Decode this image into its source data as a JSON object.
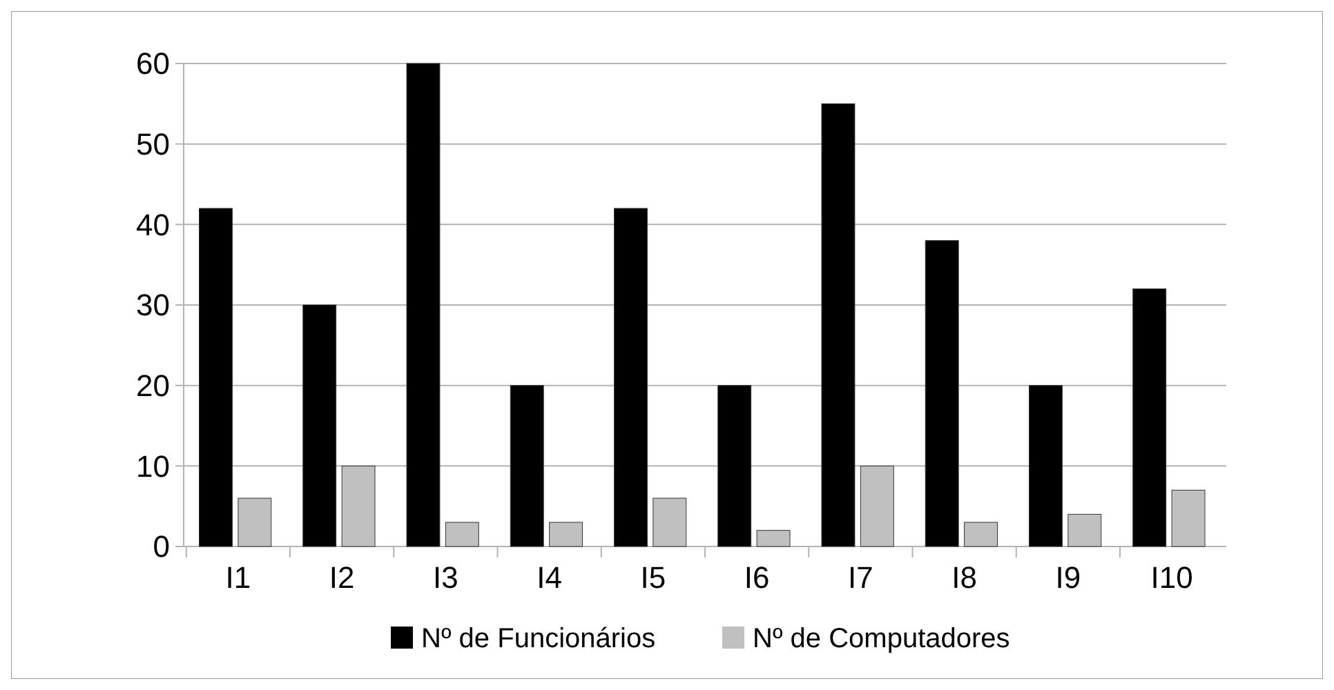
{
  "chart_data": {
    "type": "bar",
    "categories": [
      "I1",
      "I2",
      "I3",
      "I4",
      "I5",
      "I6",
      "I7",
      "I8",
      "I9",
      "I10"
    ],
    "series": [
      {
        "name": "Nº de Funcionários",
        "color": "#000000",
        "values": [
          42,
          30,
          60,
          20,
          42,
          20,
          55,
          38,
          20,
          32
        ]
      },
      {
        "name": "Nº de Computadores",
        "color": "#c0c0c0",
        "values": [
          6,
          10,
          3,
          3,
          6,
          2,
          10,
          3,
          4,
          7
        ]
      }
    ],
    "ylim": [
      0,
      60
    ],
    "yticks": [
      0,
      10,
      20,
      30,
      40,
      50,
      60
    ],
    "grid": "y",
    "legend": "bottom"
  }
}
